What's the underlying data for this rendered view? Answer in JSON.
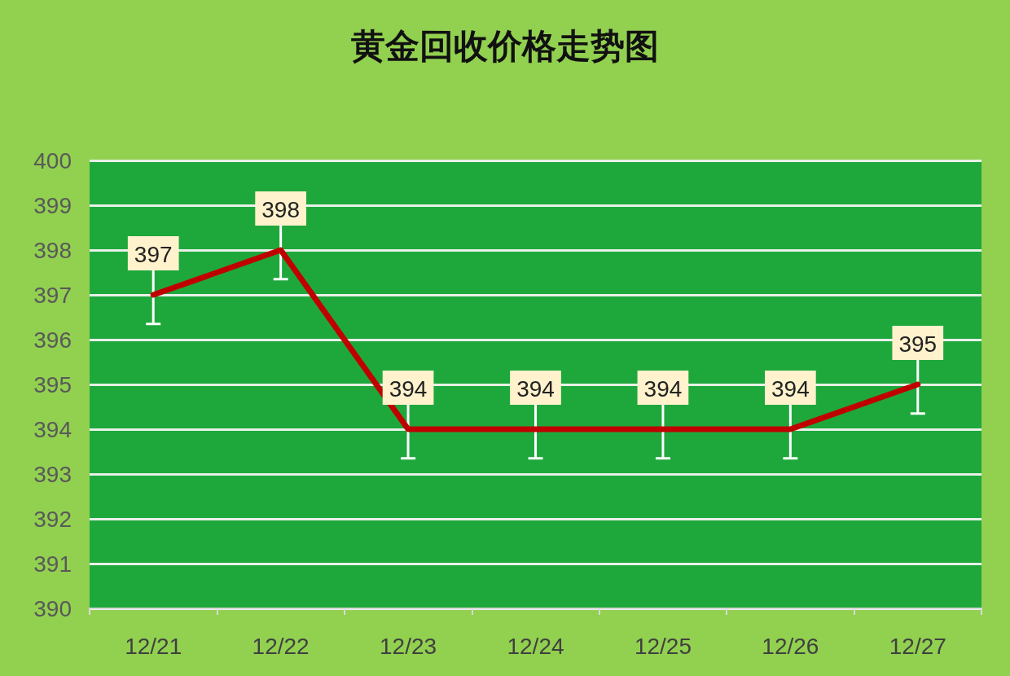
{
  "chart_data": {
    "type": "line",
    "title": "黄金回收价格走势图",
    "categories": [
      "12/21",
      "12/22",
      "12/23",
      "12/24",
      "12/25",
      "12/26",
      "12/27"
    ],
    "series": [
      {
        "color": "#c00000",
        "values": [
          397,
          398,
          394,
          394,
          394,
          394,
          395
        ],
        "errors": [
          0.65,
          0.65,
          0.65,
          0.65,
          0.65,
          0.65,
          0.65
        ]
      }
    ],
    "ylim": [
      390,
      400
    ],
    "yticks": [
      390,
      391,
      392,
      393,
      394,
      395,
      396,
      397,
      398,
      399,
      400
    ],
    "grid": "y",
    "marker": "none",
    "line_style": "solid",
    "data_labels": true
  }
}
